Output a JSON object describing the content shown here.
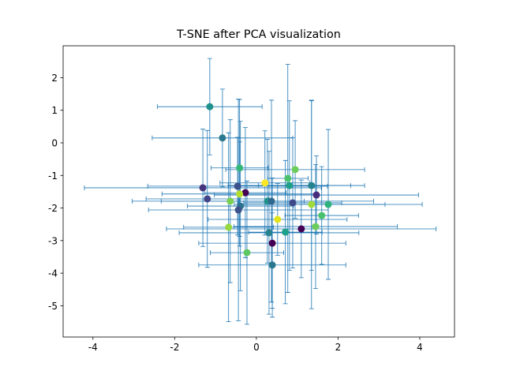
{
  "chart_data": {
    "type": "errorbar-scatter",
    "title": "T-SNE after PCA visualization",
    "x": [
      -1.14,
      -0.83,
      -0.41,
      0.95,
      0.21,
      0.77,
      0.81,
      1.35,
      -1.31,
      -0.46,
      -0.27,
      -0.41,
      1.47,
      -1.2,
      -0.64,
      0.27,
      0.37,
      0.89,
      1.35,
      1.76,
      -0.39,
      -0.44,
      1.6,
      0.52,
      -0.68,
      1.45,
      1.1,
      0.31,
      0.71,
      0.39,
      -0.23,
      0.39
    ],
    "values": [
      1.11,
      0.15,
      -0.77,
      -0.82,
      -1.23,
      -1.09,
      -1.31,
      -1.31,
      -1.38,
      -1.33,
      -1.53,
      -1.57,
      -1.6,
      -1.72,
      -1.79,
      -1.79,
      -1.79,
      -1.84,
      -1.89,
      -1.89,
      -1.94,
      -2.06,
      -2.23,
      -2.35,
      -2.59,
      -2.57,
      -2.64,
      -2.76,
      -2.74,
      -3.08,
      -3.37,
      -3.75
    ],
    "xerr": [
      1.28,
      1.72,
      0.7,
      1.7,
      1.1,
      0.5,
      1.5,
      1.3,
      2.9,
      2.2,
      1.0,
      1.9,
      2.5,
      1.5,
      2.4,
      2.6,
      0.8,
      1.2,
      1.8,
      2.3,
      1.3,
      2.2,
      0.9,
      1.7,
      1.1,
      2.0,
      3.3,
      2.2,
      0.9,
      1.8,
      0.9,
      1.8
    ],
    "yerr": [
      1.48,
      1.5,
      2.1,
      1.5,
      1.6,
      3.5,
      2.6,
      2.6,
      1.8,
      1.5,
      2.0,
      1.6,
      1.2,
      2.1,
      2.5,
      1.9,
      3.1,
      2.0,
      3.2,
      2.3,
      2.6,
      3.4,
      1.5,
      1.1,
      2.9,
      1.9,
      1.5,
      2.5,
      2.2,
      2.0,
      2.2,
      1.6
    ],
    "colors": [
      "#21918c",
      "#2a788e",
      "#35b779",
      "#6ccd5a",
      "#fde725",
      "#4ac16d",
      "#1f9e89",
      "#26828e",
      "#46337e",
      "#3b528b",
      "#440154",
      "#b5de2b",
      "#472d7b",
      "#414487",
      "#7ad151",
      "#21918c",
      "#31688e",
      "#3e4989",
      "#9fda3a",
      "#2db27d",
      "#2c728e",
      "#3b528b",
      "#4ac16d",
      "#e5e419",
      "#95d840",
      "#6ccd5a",
      "#440154",
      "#26828e",
      "#1fa088",
      "#440154",
      "#5ec962",
      "#2a788e"
    ],
    "errorbar_color": "#1f77b4",
    "xlim": [
      -4.73,
      4.85
    ],
    "ylim": [
      -5.96,
      2.98
    ],
    "xticks": [
      -4,
      -2,
      0,
      2,
      4
    ],
    "yticks": [
      -5,
      -4,
      -3,
      -2,
      -1,
      0,
      1,
      2
    ]
  }
}
